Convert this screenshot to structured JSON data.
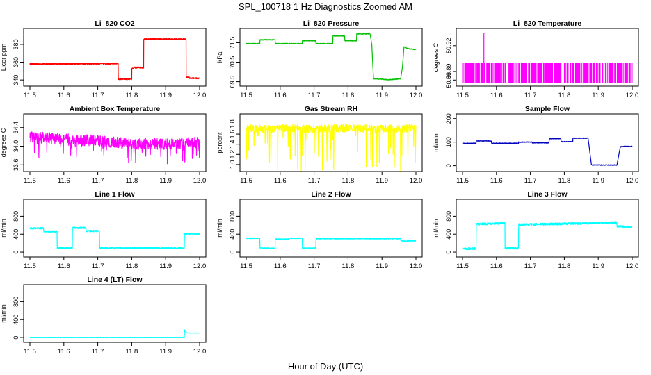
{
  "figure": {
    "title": "SPL_100718  1 Hz Diagnostics Zoomed AM",
    "xlabel": "Hour of Day (UTC)"
  },
  "chart_data": [
    {
      "type": "line",
      "title": "Li–820 CO2",
      "ylabel": "Licor ppm",
      "color": "#ff0000",
      "xlim": [
        11.5,
        12.0
      ],
      "ylim": [
        337,
        394
      ],
      "xticks": [
        "11.5",
        "11.6",
        "11.7",
        "11.8",
        "11.9",
        "12.0"
      ],
      "yticks": [
        {
          "v": 340,
          "label": "340"
        },
        {
          "v": 360,
          "label": "360"
        },
        {
          "v": 380,
          "label": "380"
        }
      ],
      "series": [
        {
          "name": "CO2",
          "noise": 0.8,
          "x": [
            11.5,
            11.76,
            11.76,
            11.8,
            11.8,
            11.805,
            11.805,
            11.835,
            11.835,
            11.96,
            11.96,
            11.97,
            11.97,
            12.0
          ],
          "y": [
            358,
            358.5,
            341,
            341,
            353,
            353,
            354,
            354,
            386,
            386,
            343,
            343,
            342,
            342
          ]
        }
      ]
    },
    {
      "type": "line",
      "title": "Li–820 Pressure",
      "ylabel": "kPa",
      "color": "#00c000",
      "xlim": [
        11.5,
        12.0
      ],
      "ylim": [
        69.45,
        72.05
      ],
      "xticks": [
        "11.5",
        "11.6",
        "11.7",
        "11.8",
        "11.9",
        "12.0"
      ],
      "yticks": [
        {
          "v": 69.5,
          "label": "69.5"
        },
        {
          "v": 70.5,
          "label": "70.5"
        },
        {
          "v": 71.5,
          "label": "71.5"
        }
      ],
      "series": [
        {
          "name": "Pressure",
          "noise": 0.02,
          "x": [
            11.5,
            11.54,
            11.54,
            11.585,
            11.585,
            11.665,
            11.665,
            11.705,
            11.705,
            11.755,
            11.755,
            11.79,
            11.79,
            11.825,
            11.825,
            11.865,
            11.87,
            11.875,
            11.92,
            11.955,
            11.96,
            11.965,
            11.975,
            12.0
          ],
          "y": [
            71.45,
            71.45,
            71.65,
            71.65,
            71.45,
            71.45,
            71.6,
            71.6,
            71.45,
            71.45,
            71.85,
            71.85,
            71.6,
            71.6,
            71.95,
            71.95,
            71.4,
            69.65,
            69.6,
            69.65,
            70.2,
            71.3,
            71.2,
            71.15
          ]
        }
      ]
    },
    {
      "type": "area",
      "title": "Li–820 Temperature",
      "ylabel": "degrees C",
      "color": "#ff00ff",
      "xlim": [
        11.5,
        12.0
      ],
      "ylim": [
        50.877,
        50.936
      ],
      "xticks": [
        "11.5",
        "11.6",
        "11.7",
        "11.8",
        "11.9",
        "12.0"
      ],
      "yticks": [
        {
          "v": 50.88,
          "label": "50.88"
        },
        {
          "v": 50.89,
          "label": "50.89"
        },
        {
          "v": 50.92,
          "label": "50.92"
        }
      ],
      "series": [
        {
          "name": "Temperature",
          "base": 50.877,
          "level": 50.9,
          "spike_x": 11.563,
          "spike_y": 50.935,
          "density": 0.75
        }
      ]
    },
    {
      "type": "line",
      "title": "Ambient Box Temperature",
      "ylabel": "degrees C",
      "color": "#ff00ff",
      "xlim": [
        11.5,
        12.0
      ],
      "ylim": [
        33.53,
        34.62
      ],
      "xticks": [
        "11.5",
        "11.6",
        "11.7",
        "11.8",
        "11.9",
        "12.0"
      ],
      "yticks": [
        {
          "v": 33.6,
          "label": "33.6"
        },
        {
          "v": 34.0,
          "label": "34.0"
        },
        {
          "v": 34.4,
          "label": "34.4"
        }
      ],
      "series": [
        {
          "name": "Box Temp",
          "noise": 0.12,
          "dips": 0.15,
          "x": [
            11.5,
            11.6,
            11.7,
            11.8,
            11.9,
            12.0
          ],
          "y": [
            34.2,
            34.15,
            34.12,
            34.05,
            34.05,
            34.08
          ]
        }
      ]
    },
    {
      "type": "line",
      "title": "Gas Stream RH",
      "ylabel": "percent",
      "color": "#ffff00",
      "xlim": [
        11.5,
        12.0
      ],
      "ylim": [
        0.93,
        1.93
      ],
      "xticks": [
        "11.5",
        "11.6",
        "11.7",
        "11.8",
        "11.9",
        "12.0"
      ],
      "yticks": [
        {
          "v": 1.0,
          "label": "1.0"
        },
        {
          "v": 1.2,
          "label": "1.2"
        },
        {
          "v": 1.4,
          "label": "1.4"
        },
        {
          "v": 1.6,
          "label": "1.6"
        },
        {
          "v": 1.8,
          "label": "1.8"
        }
      ],
      "series": [
        {
          "name": "RH",
          "noise": 0.08,
          "dips": 0.5,
          "x": [
            11.5,
            11.6,
            11.7,
            11.8,
            11.9,
            12.0
          ],
          "y": [
            1.7,
            1.72,
            1.7,
            1.72,
            1.7,
            1.72
          ]
        }
      ]
    },
    {
      "type": "line",
      "title": "Sample Flow",
      "ylabel": "ml/min",
      "color": "#0000c0",
      "xlim": [
        11.5,
        12.0
      ],
      "ylim": [
        -10,
        205
      ],
      "xticks": [
        "11.5",
        "11.6",
        "11.7",
        "11.8",
        "11.9",
        "12.0"
      ],
      "yticks": [
        {
          "v": 0,
          "label": "0"
        },
        {
          "v": 100,
          "label": "100"
        },
        {
          "v": 200,
          "label": "200"
        }
      ],
      "series": [
        {
          "name": "Sample Flow",
          "noise": 1.5,
          "x": [
            11.5,
            11.54,
            11.54,
            11.585,
            11.585,
            11.665,
            11.665,
            11.705,
            11.705,
            11.755,
            11.755,
            11.79,
            11.79,
            11.825,
            11.825,
            11.87,
            11.875,
            11.88,
            11.955,
            11.965,
            11.975,
            12.0
          ],
          "y": [
            95,
            95,
            105,
            105,
            95,
            95,
            100,
            100,
            97,
            97,
            115,
            115,
            102,
            102,
            117,
            117,
            60,
            3,
            3,
            80,
            82,
            82
          ]
        }
      ]
    },
    {
      "type": "line",
      "title": "Line 1 Flow",
      "ylabel": "ml/min",
      "color": "#00ffff",
      "xlim": [
        11.5,
        12.0
      ],
      "ylim": [
        -30,
        1100
      ],
      "xticks": [
        "11.5",
        "11.6",
        "11.7",
        "11.8",
        "11.9",
        "12.0"
      ],
      "yticks": [
        {
          "v": 0,
          "label": "0"
        },
        {
          "v": 400,
          "label": "400"
        },
        {
          "v": 800,
          "label": "800"
        }
      ],
      "series": [
        {
          "name": "Line 1",
          "noise": 20,
          "x": [
            11.5,
            11.54,
            11.54,
            11.58,
            11.58,
            11.625,
            11.625,
            11.665,
            11.665,
            11.705,
            11.705,
            11.955,
            11.955,
            12.0
          ],
          "y": [
            530,
            530,
            460,
            460,
            90,
            90,
            540,
            540,
            470,
            470,
            90,
            90,
            410,
            400
          ]
        }
      ]
    },
    {
      "type": "line",
      "title": "Line 2 Flow",
      "ylabel": "ml/min",
      "color": "#00ffff",
      "xlim": [
        11.5,
        12.0
      ],
      "ylim": [
        -30,
        1100
      ],
      "xticks": [
        "11.5",
        "11.6",
        "11.7",
        "11.8",
        "11.9",
        "12.0"
      ],
      "yticks": [
        {
          "v": 0,
          "label": "0"
        },
        {
          "v": 400,
          "label": "400"
        },
        {
          "v": 800,
          "label": "800"
        }
      ],
      "series": [
        {
          "name": "Line 2",
          "noise": 10,
          "x": [
            11.5,
            11.54,
            11.54,
            11.585,
            11.585,
            11.625,
            11.625,
            11.665,
            11.665,
            11.705,
            11.705,
            11.955,
            11.955,
            12.0
          ],
          "y": [
            310,
            310,
            90,
            90,
            290,
            290,
            310,
            310,
            90,
            90,
            300,
            300,
            250,
            250
          ]
        }
      ]
    },
    {
      "type": "line",
      "title": "Line 3 Flow",
      "ylabel": "ml/min",
      "color": "#00ffff",
      "xlim": [
        11.5,
        12.0
      ],
      "ylim": [
        -30,
        1100
      ],
      "xticks": [
        "11.5",
        "11.6",
        "11.7",
        "11.8",
        "11.9",
        "12.0"
      ],
      "yticks": [
        {
          "v": 0,
          "label": "0"
        },
        {
          "v": 400,
          "label": "400"
        },
        {
          "v": 800,
          "label": "800"
        }
      ],
      "series": [
        {
          "name": "Line 3",
          "noise": 25,
          "x": [
            11.5,
            11.54,
            11.54,
            11.625,
            11.625,
            11.665,
            11.665,
            11.955,
            11.955,
            12.0
          ],
          "y": [
            80,
            80,
            620,
            650,
            90,
            90,
            610,
            660,
            570,
            560
          ]
        }
      ]
    },
    {
      "type": "line",
      "title": "Line 4 (LT) Flow",
      "ylabel": "ml/min",
      "color": "#00ffff",
      "xlim": [
        11.5,
        12.0
      ],
      "ylim": [
        -30,
        1100
      ],
      "xticks": [
        "11.5",
        "11.6",
        "11.7",
        "11.8",
        "11.9",
        "12.0"
      ],
      "yticks": [
        {
          "v": 0,
          "label": "0"
        },
        {
          "v": 400,
          "label": "400"
        },
        {
          "v": 800,
          "label": "800"
        }
      ],
      "series": [
        {
          "name": "Line 4",
          "noise": 3,
          "x": [
            11.5,
            11.955,
            11.955,
            11.96,
            11.965,
            12.0
          ],
          "y": [
            5,
            5,
            180,
            110,
            100,
            100
          ]
        }
      ]
    }
  ]
}
